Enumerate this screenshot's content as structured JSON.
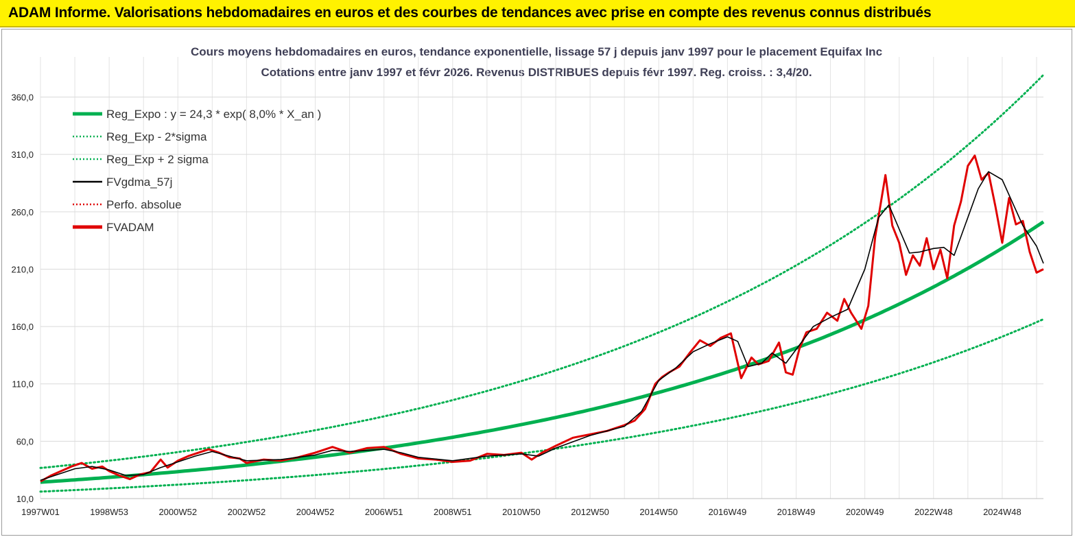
{
  "banner": {
    "title": "ADAM Informe. Valorisations hebdomadaires en euros et des courbes de tendances avec prise en compte des revenus connus distribués",
    "accent_color": "#fff200"
  },
  "chart_data": {
    "type": "line",
    "title_line1": "Cours moyens hebdomadaires en euros, tendance exponentielle, lissage 57 j depuis janv 1997 pour le placement Equifax Inc",
    "title_line2": "Cotations entre janv 1997 et févr 2026. Revenus DISTRIBUES depuis févr 1997. Reg. croiss. : 3,4/20.",
    "xlabel": "",
    "ylabel": "",
    "ylim": [
      10,
      395
    ],
    "xlim": [
      1997.0,
      2026.2
    ],
    "y_ticks": [
      "10,0",
      "60,0",
      "110,0",
      "160,0",
      "210,0",
      "260,0",
      "310,0",
      "360,0"
    ],
    "y_tick_values": [
      10,
      60,
      110,
      160,
      210,
      260,
      310,
      360
    ],
    "x_ticks": [
      "1997W01",
      "1998W53",
      "2000W52",
      "2002W52",
      "2004W52",
      "2006W51",
      "2008W51",
      "2010W50",
      "2012W50",
      "2014W50",
      "2016W49",
      "2018W49",
      "2020W49",
      "2022W48",
      "2024W48"
    ],
    "x_tick_values": [
      1997,
      1999,
      2001,
      2003,
      2005,
      2007,
      2009,
      2011,
      2013,
      2015,
      2017,
      2019,
      2021,
      2023,
      2025
    ],
    "grid": true,
    "legend_position": "top-left",
    "regression": {
      "a": 24.3,
      "rate_pct": 8.0,
      "sigma_factor": 1.51
    },
    "legend": [
      {
        "label": "Reg_Expo : y = 24,3 * exp( 8,0% *  X_an )",
        "color": "#00b050",
        "style": "thick"
      },
      {
        "label": "Reg_Exp - 2*sigma",
        "color": "#00b050",
        "style": "dotted"
      },
      {
        "label": "Reg_Exp + 2 sigma",
        "color": "#00b050",
        "style": "dotted"
      },
      {
        "label": "FVgdma_57j",
        "color": "#000000",
        "style": "solid"
      },
      {
        "label": "Perfo. absolue",
        "color": "#e00000",
        "style": "dotted"
      },
      {
        "label": "FVADAM",
        "color": "#e00000",
        "style": "thick"
      }
    ],
    "series": [
      {
        "name": "FVADAM",
        "color": "#e00000",
        "x": [
          1997.0,
          1997.3,
          1997.6,
          1997.9,
          1998.2,
          1998.5,
          1998.8,
          1999.0,
          1999.3,
          1999.6,
          1999.9,
          2000.2,
          2000.5,
          2000.7,
          2001.0,
          2001.3,
          2001.6,
          2001.9,
          2002.2,
          2002.5,
          2002.8,
          2003.0,
          2003.5,
          2004.0,
          2004.5,
          2005.0,
          2005.5,
          2006.0,
          2006.5,
          2007.0,
          2007.5,
          2008.0,
          2008.5,
          2009.0,
          2009.5,
          2010.0,
          2010.5,
          2011.0,
          2011.3,
          2011.6,
          2012.0,
          2012.5,
          2013.0,
          2013.5,
          2014.0,
          2014.3,
          2014.6,
          2014.9,
          2015.1,
          2015.3,
          2015.6,
          2015.9,
          2016.2,
          2016.5,
          2016.8,
          2017.1,
          2017.4,
          2017.7,
          2017.9,
          2018.2,
          2018.5,
          2018.7,
          2018.9,
          2019.1,
          2019.3,
          2019.6,
          2019.9,
          2020.2,
          2020.4,
          2020.6,
          2020.9,
          2021.1,
          2021.3,
          2021.6,
          2021.8,
          2022.0,
          2022.2,
          2022.4,
          2022.6,
          2022.8,
          2023.0,
          2023.2,
          2023.4,
          2023.6,
          2023.8,
          2024.0,
          2024.2,
          2024.4,
          2024.6,
          2024.8,
          2025.0,
          2025.2,
          2025.4,
          2025.6,
          2025.8,
          2026.0,
          2026.2
        ],
        "values": [
          25,
          30,
          34,
          38,
          41,
          36,
          38,
          34,
          30,
          27,
          31,
          33,
          44,
          37,
          43,
          47,
          50,
          53,
          50,
          46,
          45,
          41,
          44,
          43,
          46,
          50,
          55,
          50,
          54,
          55,
          49,
          45,
          44,
          42,
          43,
          49,
          48,
          50,
          44,
          50,
          56,
          63,
          66,
          69,
          74,
          78,
          88,
          110,
          116,
          120,
          125,
          137,
          148,
          143,
          150,
          154,
          115,
          133,
          127,
          130,
          146,
          120,
          118,
          141,
          155,
          158,
          172,
          165,
          184,
          172,
          158,
          178,
          238,
          292,
          248,
          233,
          205,
          222,
          213,
          237,
          210,
          227,
          202,
          248,
          269,
          300,
          309,
          288,
          294,
          265,
          233,
          272,
          249,
          252,
          225,
          207,
          210
        ]
      },
      {
        "name": "FVgdma_57j",
        "color": "#000000",
        "x": [
          1997.0,
          1997.5,
          1998.0,
          1998.5,
          1999.0,
          1999.5,
          2000.0,
          2000.5,
          2001.0,
          2001.5,
          2002.0,
          2002.5,
          2003.0,
          2004.0,
          2005.0,
          2005.5,
          2006.0,
          2007.0,
          2007.5,
          2008.0,
          2009.0,
          2010.0,
          2011.0,
          2011.5,
          2012.0,
          2013.0,
          2014.0,
          2014.5,
          2015.0,
          2015.5,
          2016.0,
          2016.5,
          2017.0,
          2017.3,
          2017.6,
          2018.0,
          2018.3,
          2018.7,
          2019.0,
          2019.5,
          2020.0,
          2020.5,
          2021.0,
          2021.4,
          2021.7,
          2022.0,
          2022.3,
          2022.6,
          2023.0,
          2023.3,
          2023.6,
          2024.0,
          2024.3,
          2024.6,
          2025.0,
          2025.3,
          2025.6,
          2026.0,
          2026.2
        ],
        "values": [
          26,
          31,
          36,
          38,
          35,
          30,
          31,
          37,
          42,
          47,
          51,
          47,
          43,
          44,
          48,
          52,
          51,
          53,
          50,
          46,
          43,
          47,
          49,
          47,
          54,
          65,
          73,
          86,
          113,
          124,
          138,
          145,
          151,
          147,
          125,
          128,
          137,
          128,
          140,
          160,
          168,
          175,
          210,
          255,
          266,
          245,
          224,
          225,
          228,
          229,
          222,
          255,
          280,
          295,
          288,
          268,
          248,
          230,
          215
        ]
      }
    ]
  }
}
